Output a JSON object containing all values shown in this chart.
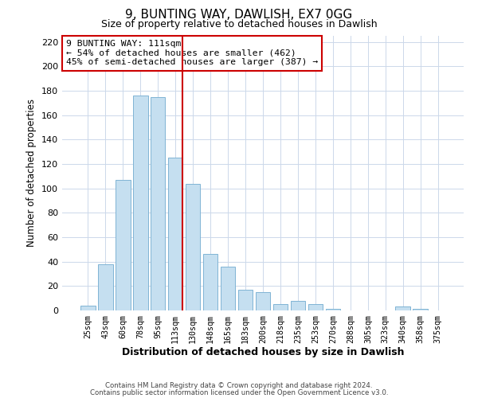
{
  "title": "9, BUNTING WAY, DAWLISH, EX7 0GG",
  "subtitle": "Size of property relative to detached houses in Dawlish",
  "xlabel": "Distribution of detached houses by size in Dawlish",
  "ylabel": "Number of detached properties",
  "bar_labels": [
    "25sqm",
    "43sqm",
    "60sqm",
    "78sqm",
    "95sqm",
    "113sqm",
    "130sqm",
    "148sqm",
    "165sqm",
    "183sqm",
    "200sqm",
    "218sqm",
    "235sqm",
    "253sqm",
    "270sqm",
    "288sqm",
    "305sqm",
    "323sqm",
    "340sqm",
    "358sqm",
    "375sqm"
  ],
  "bar_values": [
    4,
    38,
    107,
    176,
    175,
    125,
    104,
    46,
    36,
    17,
    15,
    5,
    8,
    5,
    1,
    0,
    0,
    0,
    3,
    1,
    0
  ],
  "bar_color": "#c5dff0",
  "bar_edge_color": "#7fb4d4",
  "highlight_line_index": 5,
  "highlight_line_color": "#cc0000",
  "ylim": [
    0,
    225
  ],
  "yticks": [
    0,
    20,
    40,
    60,
    80,
    100,
    120,
    140,
    160,
    180,
    200,
    220
  ],
  "annotation_title": "9 BUNTING WAY: 111sqm",
  "annotation_line1": "← 54% of detached houses are smaller (462)",
  "annotation_line2": "45% of semi-detached houses are larger (387) →",
  "annotation_box_facecolor": "#ffffff",
  "annotation_box_edgecolor": "#cc0000",
  "footer_line1": "Contains HM Land Registry data © Crown copyright and database right 2024.",
  "footer_line2": "Contains public sector information licensed under the Open Government Licence v3.0.",
  "background_color": "#ffffff",
  "grid_color": "#ccd8ea"
}
